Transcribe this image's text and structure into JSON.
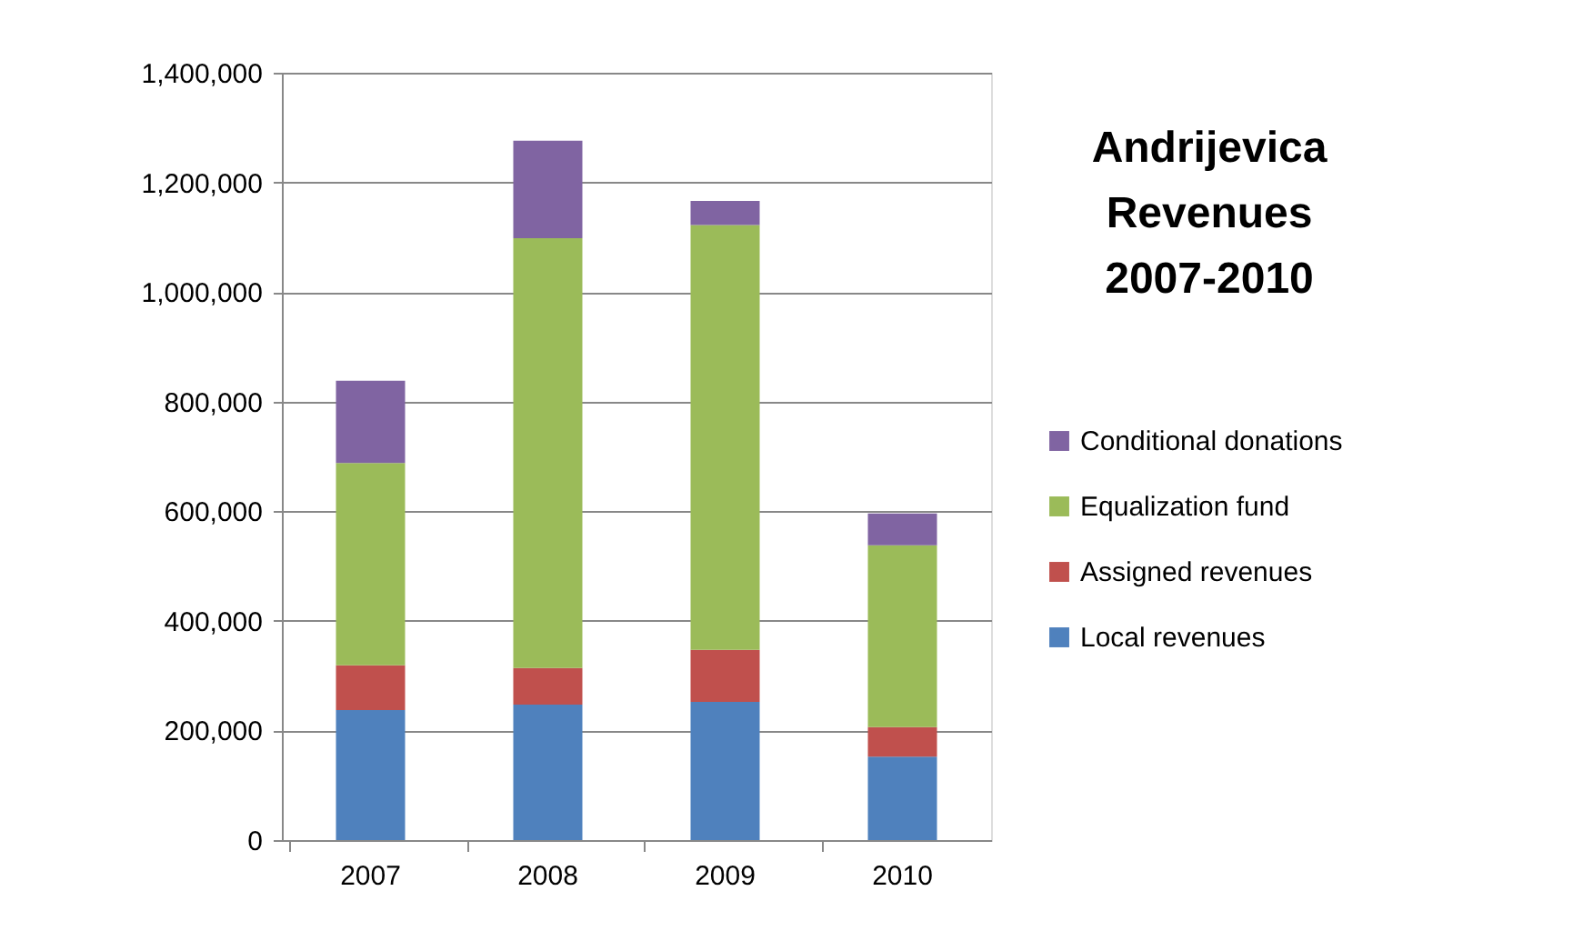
{
  "chart_data": {
    "type": "bar",
    "title": [
      "Andrijevica",
      "Revenues",
      "2007-2010"
    ],
    "stacked": true,
    "categories": [
      "2007",
      "2008",
      "2009",
      "2010"
    ],
    "series": [
      {
        "name": "Local revenues",
        "color": "#4f81bd",
        "values": [
          237000,
          247000,
          252000,
          152000
        ]
      },
      {
        "name": "Assigned revenues",
        "color": "#c0504d",
        "values": [
          82000,
          67000,
          95000,
          54000
        ]
      },
      {
        "name": "Equalization fund",
        "color": "#9bbb59",
        "values": [
          369000,
          784000,
          775000,
          332000
        ]
      },
      {
        "name": "Conditional donations",
        "color": "#8064a2",
        "values": [
          150000,
          178000,
          44000,
          58000
        ]
      }
    ],
    "ylim": [
      0,
      1400000
    ],
    "yticks": [
      0,
      {
        "value": 200000,
        "label": "200,000"
      },
      {
        "value": 400000,
        "label": "400,000"
      },
      {
        "value": 600000,
        "label": "600,000"
      },
      {
        "value": 800000,
        "label": "800,000"
      },
      {
        "value": 1000000,
        "label": "1,000,000"
      },
      {
        "value": 1200000,
        "label": "1,200,000"
      },
      {
        "value": 1400000,
        "label": "1,400,000"
      }
    ],
    "grid": "y",
    "legend": "right"
  }
}
